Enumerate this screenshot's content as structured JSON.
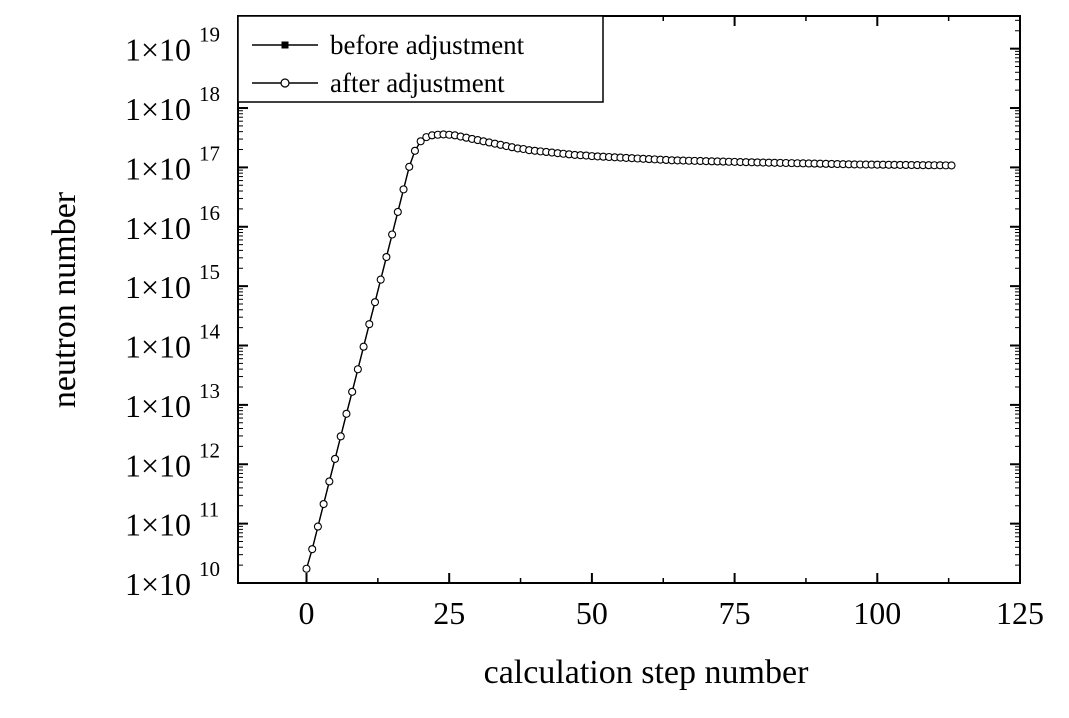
{
  "chart_data": {
    "type": "line",
    "xlabel": "calculation step number",
    "ylabel": "neutron number",
    "xlim": [
      -12,
      125
    ],
    "ylim_log10": [
      10,
      19.55
    ],
    "y_scale": "log",
    "x_ticks": [
      0,
      25,
      50,
      75,
      100,
      125
    ],
    "x_tick_labels": [
      "0",
      "25",
      "50",
      "75",
      "100",
      "125"
    ],
    "y_ticks_log10": [
      10,
      11,
      12,
      13,
      14,
      15,
      16,
      17,
      18,
      19
    ],
    "y_tick_base": "1×10",
    "y_tick_exponents": [
      "10",
      "11",
      "12",
      "13",
      "14",
      "15",
      "16",
      "17",
      "18",
      "19"
    ],
    "grid": false,
    "legend_position": "top-left",
    "series": [
      {
        "name": "before adjustment",
        "marker": "filled-square",
        "x_start": 0,
        "x_step": 1,
        "log10_values": [
          10.24,
          10.57,
          10.95,
          11.33,
          11.71,
          12.09,
          12.47,
          12.85,
          13.22,
          13.6,
          13.98,
          14.36,
          14.73,
          15.11,
          15.49,
          15.87,
          16.25,
          16.63,
          17.01,
          17.28,
          17.44,
          17.51,
          17.54,
          17.55,
          17.555,
          17.55,
          17.54,
          17.52,
          17.5,
          17.48,
          17.46,
          17.44,
          17.42,
          17.4,
          17.38,
          17.36,
          17.34,
          17.32,
          17.31,
          17.29,
          17.28,
          17.27,
          17.26,
          17.25,
          17.24,
          17.23,
          17.22,
          17.21,
          17.205,
          17.2,
          17.19,
          17.185,
          17.18,
          17.175,
          17.17,
          17.165,
          17.16,
          17.155,
          17.15,
          17.145,
          17.14,
          17.135,
          17.13,
          17.125,
          17.12,
          17.118,
          17.115,
          17.112,
          17.11,
          17.108,
          17.105,
          17.102,
          17.1,
          17.098,
          17.095,
          17.093,
          17.09,
          17.088,
          17.086,
          17.084,
          17.082,
          17.08,
          17.078,
          17.076,
          17.074,
          17.072,
          17.07,
          17.068,
          17.066,
          17.064,
          17.062,
          17.06,
          17.058,
          17.056,
          17.054,
          17.052,
          17.05,
          17.049,
          17.048,
          17.047,
          17.046,
          17.045,
          17.044,
          17.043,
          17.042,
          17.041,
          17.04,
          17.039,
          17.038,
          17.037,
          17.036,
          17.035,
          17.034,
          17.033
        ]
      },
      {
        "name": "after adjustment",
        "marker": "open-circle",
        "x_start": 0,
        "x_step": 1,
        "log10_values": [
          10.24,
          10.57,
          10.95,
          11.33,
          11.71,
          12.09,
          12.47,
          12.85,
          13.22,
          13.6,
          13.98,
          14.36,
          14.73,
          15.11,
          15.49,
          15.87,
          16.25,
          16.63,
          17.01,
          17.28,
          17.44,
          17.51,
          17.54,
          17.55,
          17.555,
          17.55,
          17.54,
          17.52,
          17.5,
          17.48,
          17.46,
          17.44,
          17.42,
          17.4,
          17.38,
          17.36,
          17.34,
          17.32,
          17.31,
          17.29,
          17.28,
          17.27,
          17.26,
          17.25,
          17.24,
          17.23,
          17.22,
          17.21,
          17.205,
          17.2,
          17.19,
          17.185,
          17.18,
          17.175,
          17.17,
          17.165,
          17.16,
          17.155,
          17.15,
          17.145,
          17.14,
          17.135,
          17.13,
          17.125,
          17.12,
          17.118,
          17.115,
          17.112,
          17.11,
          17.108,
          17.105,
          17.102,
          17.1,
          17.098,
          17.095,
          17.093,
          17.09,
          17.088,
          17.086,
          17.084,
          17.082,
          17.08,
          17.078,
          17.076,
          17.074,
          17.072,
          17.07,
          17.068,
          17.066,
          17.064,
          17.062,
          17.06,
          17.058,
          17.056,
          17.054,
          17.052,
          17.05,
          17.049,
          17.048,
          17.047,
          17.046,
          17.045,
          17.044,
          17.043,
          17.042,
          17.041,
          17.04,
          17.039,
          17.038,
          17.037,
          17.036,
          17.035,
          17.034,
          17.033
        ]
      }
    ]
  },
  "colors": {
    "line": "#000000",
    "marker_fill_open": "#ffffff",
    "background": "#ffffff"
  }
}
